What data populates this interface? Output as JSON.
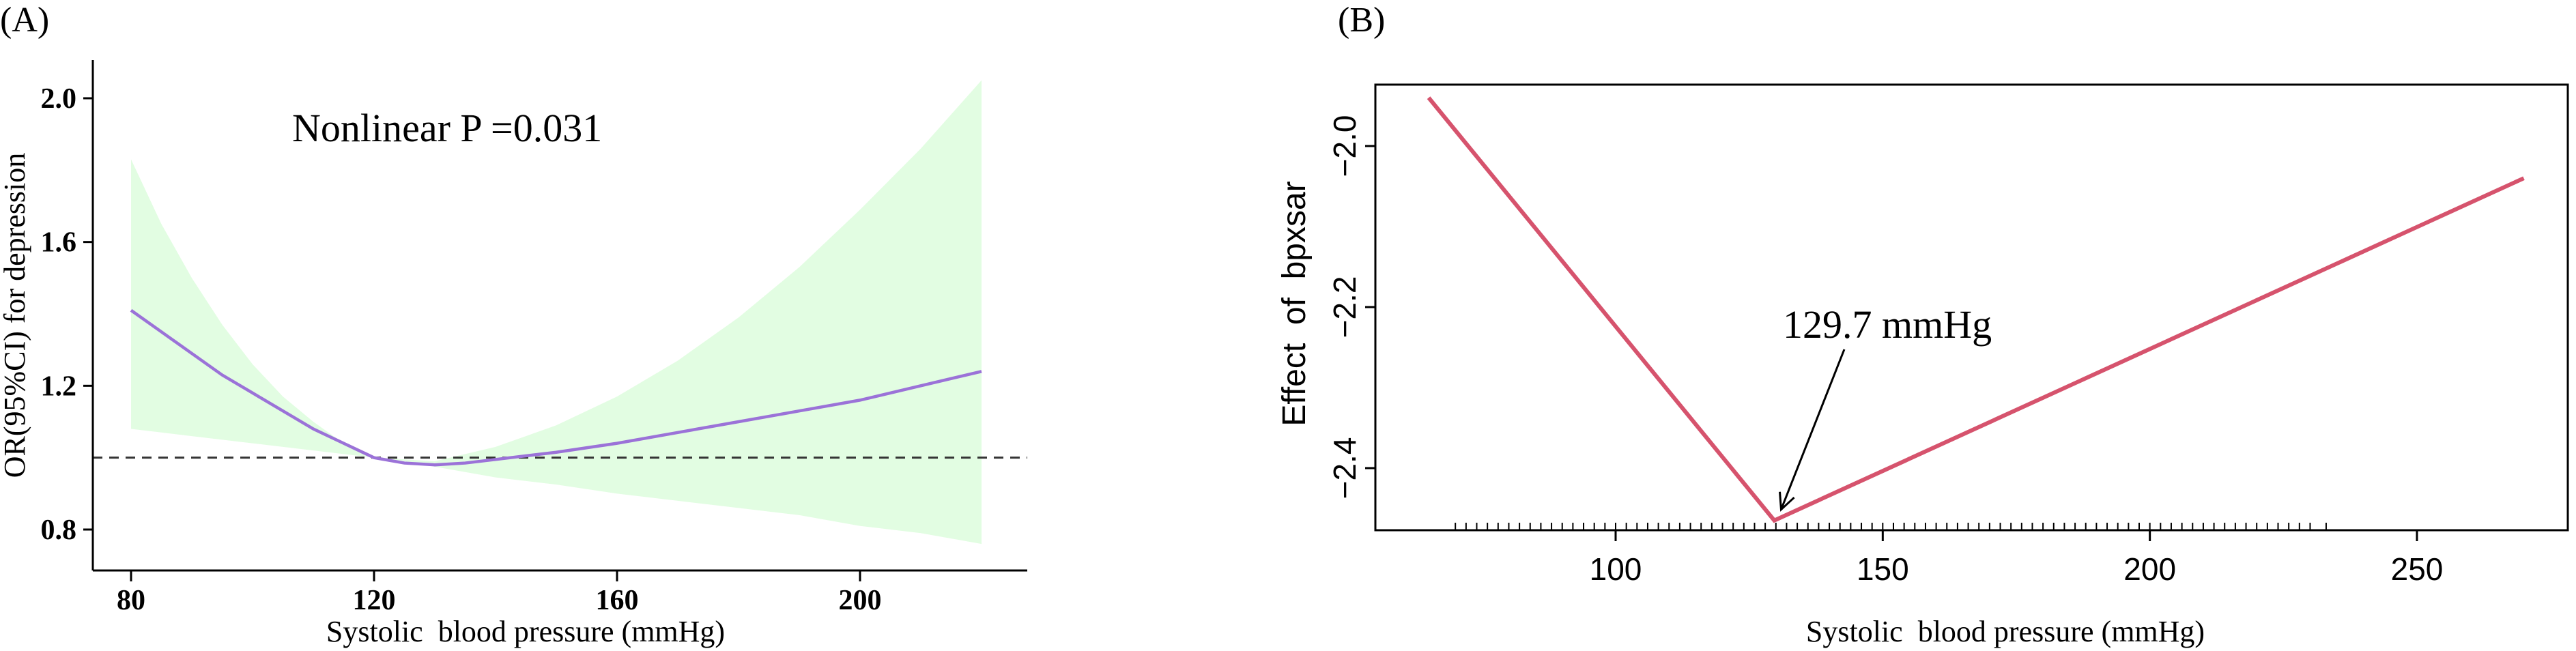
{
  "chart_data": [
    {
      "panel_label": "(A)",
      "type": "line",
      "annotation": "Nonlinear P =0.031",
      "xlabel": "Systolic  blood pressure (mmHg)",
      "ylabel": "OR(95%CI) for depression",
      "xlim": [
        80,
        220
      ],
      "ylim": [
        0.73,
        2.1
      ],
      "xticks": [
        80,
        120,
        160,
        200
      ],
      "xtick_labels": [
        "80",
        "120",
        "160",
        "200"
      ],
      "yticks": [
        0.8,
        1.2,
        1.6,
        2.0
      ],
      "ytick_labels": [
        "0.8",
        "1.2",
        "1.6",
        "2.0"
      ],
      "reference_line_y": 1.0,
      "band_color": "#e2fde2",
      "line_color": "#9b72d8",
      "series": [
        {
          "x": [
            80,
            85,
            90,
            95,
            100,
            105,
            110,
            115,
            120,
            125,
            130,
            135,
            140,
            145,
            150,
            160,
            170,
            180,
            190,
            200,
            210,
            220
          ],
          "y": [
            1.41,
            1.35,
            1.29,
            1.23,
            1.18,
            1.13,
            1.08,
            1.04,
            1.0,
            0.985,
            0.98,
            0.985,
            0.995,
            1.005,
            1.015,
            1.04,
            1.07,
            1.1,
            1.13,
            1.16,
            1.2,
            1.24
          ]
        }
      ],
      "band": {
        "x": [
          80,
          85,
          90,
          95,
          100,
          105,
          110,
          115,
          120,
          125,
          130,
          135,
          140,
          145,
          150,
          160,
          170,
          180,
          190,
          200,
          210,
          220
        ],
        "lower": [
          1.08,
          1.07,
          1.06,
          1.05,
          1.04,
          1.03,
          1.02,
          1.01,
          1.0,
          0.99,
          0.975,
          0.96,
          0.945,
          0.935,
          0.925,
          0.9,
          0.88,
          0.86,
          0.84,
          0.81,
          0.79,
          0.76
        ],
        "upper": [
          1.83,
          1.65,
          1.5,
          1.37,
          1.26,
          1.17,
          1.1,
          1.04,
          1.0,
          0.995,
          0.99,
          1.01,
          1.03,
          1.06,
          1.09,
          1.17,
          1.27,
          1.39,
          1.53,
          1.69,
          1.86,
          2.05
        ]
      }
    },
    {
      "panel_label": "(B)",
      "type": "line",
      "annotation": "129.7 mmHg",
      "xlabel": "Systolic  blood pressure (mmHg)",
      "ylabel": "Effect  of  bpxsar",
      "xlim": [
        56,
        280
      ],
      "ylim": [
        -2.5,
        -1.92
      ],
      "xticks": [
        100,
        150,
        200,
        250
      ],
      "xtick_labels": [
        "100",
        "150",
        "200",
        "250"
      ],
      "yticks": [
        -2.4,
        -2.2,
        -2.0
      ],
      "ytick_labels": [
        "−2.4",
        "−2.2",
        "−2.0"
      ],
      "line_color": "#d6536d",
      "series": [
        {
          "x": [
            65,
            129.7,
            270
          ],
          "y": [
            -1.94,
            -2.465,
            -2.04
          ]
        }
      ],
      "breakpoint": {
        "x": 129.7,
        "y": -2.465
      },
      "rug_x": [
        70,
        72,
        74,
        76,
        78,
        80,
        82,
        84,
        86,
        88,
        90,
        92,
        94,
        96,
        98,
        100,
        102,
        104,
        106,
        108,
        110,
        112,
        114,
        116,
        118,
        120,
        122,
        124,
        126,
        128,
        130,
        132,
        134,
        136,
        138,
        140,
        142,
        144,
        146,
        148,
        150,
        152,
        154,
        156,
        158,
        160,
        162,
        164,
        166,
        168,
        170,
        172,
        174,
        176,
        178,
        180,
        182,
        184,
        186,
        188,
        190,
        192,
        194,
        196,
        198,
        200,
        202,
        204,
        206,
        208,
        210,
        212,
        214,
        216,
        218,
        220,
        222,
        224,
        226,
        228,
        230,
        233
      ]
    }
  ]
}
